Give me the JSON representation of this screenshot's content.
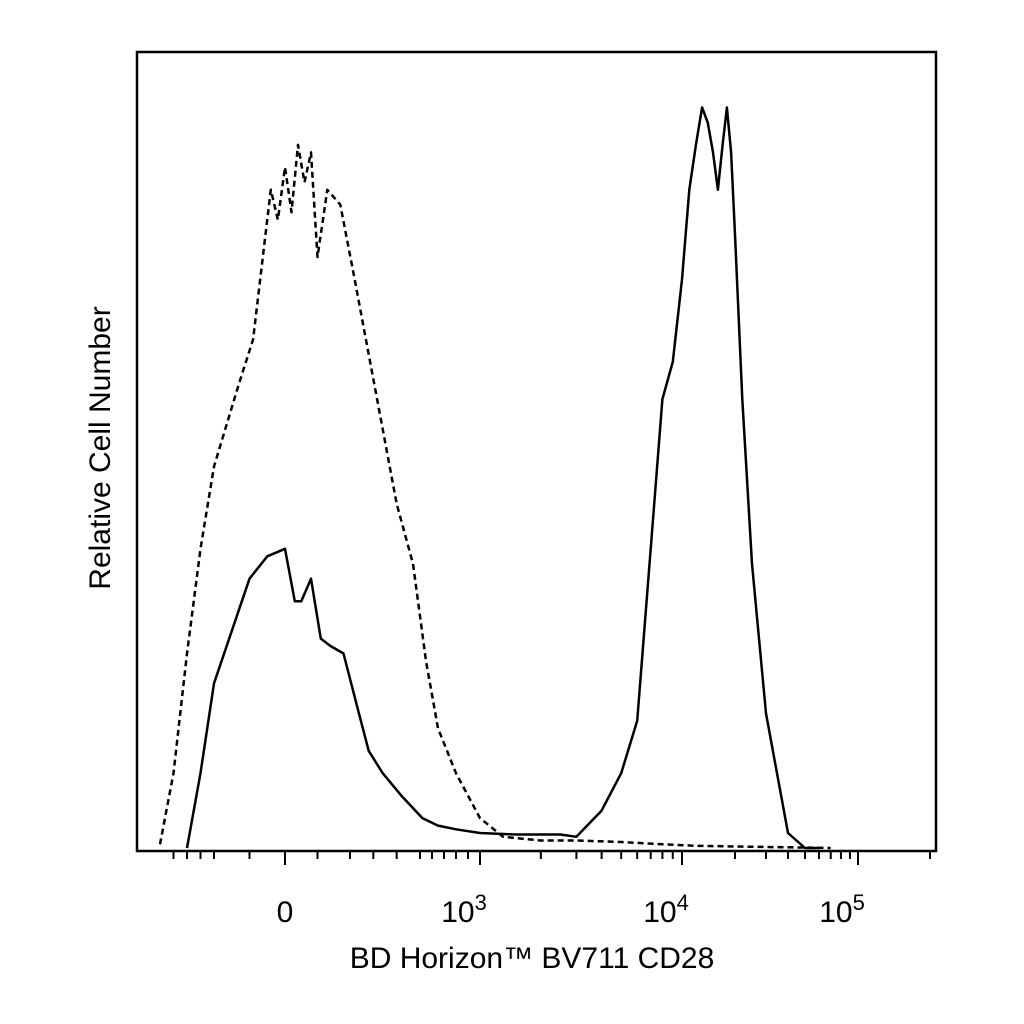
{
  "chart_data": {
    "type": "line",
    "title": "",
    "xlabel": "BD Horizon™ BV711 CD28",
    "ylabel": "Relative Cell Number",
    "x_scale": "biexponential",
    "xlim": [
      -600,
      200000
    ],
    "ylim": [
      0,
      100
    ],
    "grid": false,
    "legend": "none",
    "x_tick_labels": [
      {
        "value": 0,
        "base": "0",
        "exp": ""
      },
      {
        "value": 1000,
        "base": "10",
        "exp": "3"
      },
      {
        "value": 10000,
        "base": "10",
        "exp": "4"
      },
      {
        "value": 100000,
        "base": "10",
        "exp": "5"
      }
    ],
    "series": [
      {
        "style": "dashed",
        "x": [
          -600,
          -500,
          -400,
          -300,
          -200,
          -130,
          -90,
          -60,
          -40,
          -20,
          0,
          20,
          40,
          60,
          80,
          100,
          130,
          170,
          220,
          280,
          340,
          400,
          470,
          550,
          650,
          800,
          1000,
          1300,
          2000,
          3000,
          5000,
          8000,
          12000,
          20000,
          40000,
          70000
        ],
        "y": [
          0.5,
          10,
          26,
          40,
          51,
          62,
          68,
          80,
          88,
          84,
          91,
          85,
          94,
          89,
          93,
          79,
          88,
          86,
          76,
          66,
          56,
          46,
          38,
          25,
          16,
          10,
          4,
          1.5,
          1.0,
          1.0,
          0.8,
          0.5,
          0.3,
          0.2,
          0.1,
          0
        ]
      },
      {
        "style": "solid",
        "x": [
          -400,
          -300,
          -200,
          -100,
          -50,
          0,
          30,
          50,
          80,
          110,
          140,
          180,
          230,
          280,
          340,
          420,
          520,
          650,
          800,
          1000,
          1500,
          2500,
          3000,
          4000,
          5000,
          6000,
          7000,
          8000,
          9000,
          10000,
          11000,
          12000,
          13000,
          14000,
          15000,
          16000,
          17000,
          18000,
          19000,
          20000,
          22000,
          25000,
          30000,
          40000,
          50000,
          60000
        ],
        "y": [
          0,
          10,
          22,
          36,
          39,
          40,
          33,
          33,
          36,
          28,
          27,
          26,
          19,
          13,
          10,
          7,
          4,
          3,
          2.5,
          2.0,
          1.8,
          1.8,
          1.5,
          5,
          10,
          17,
          40,
          60,
          65,
          76,
          88,
          94,
          99,
          97,
          93,
          88,
          94,
          99,
          93,
          82,
          60,
          38,
          18,
          2,
          0,
          0
        ]
      }
    ]
  }
}
